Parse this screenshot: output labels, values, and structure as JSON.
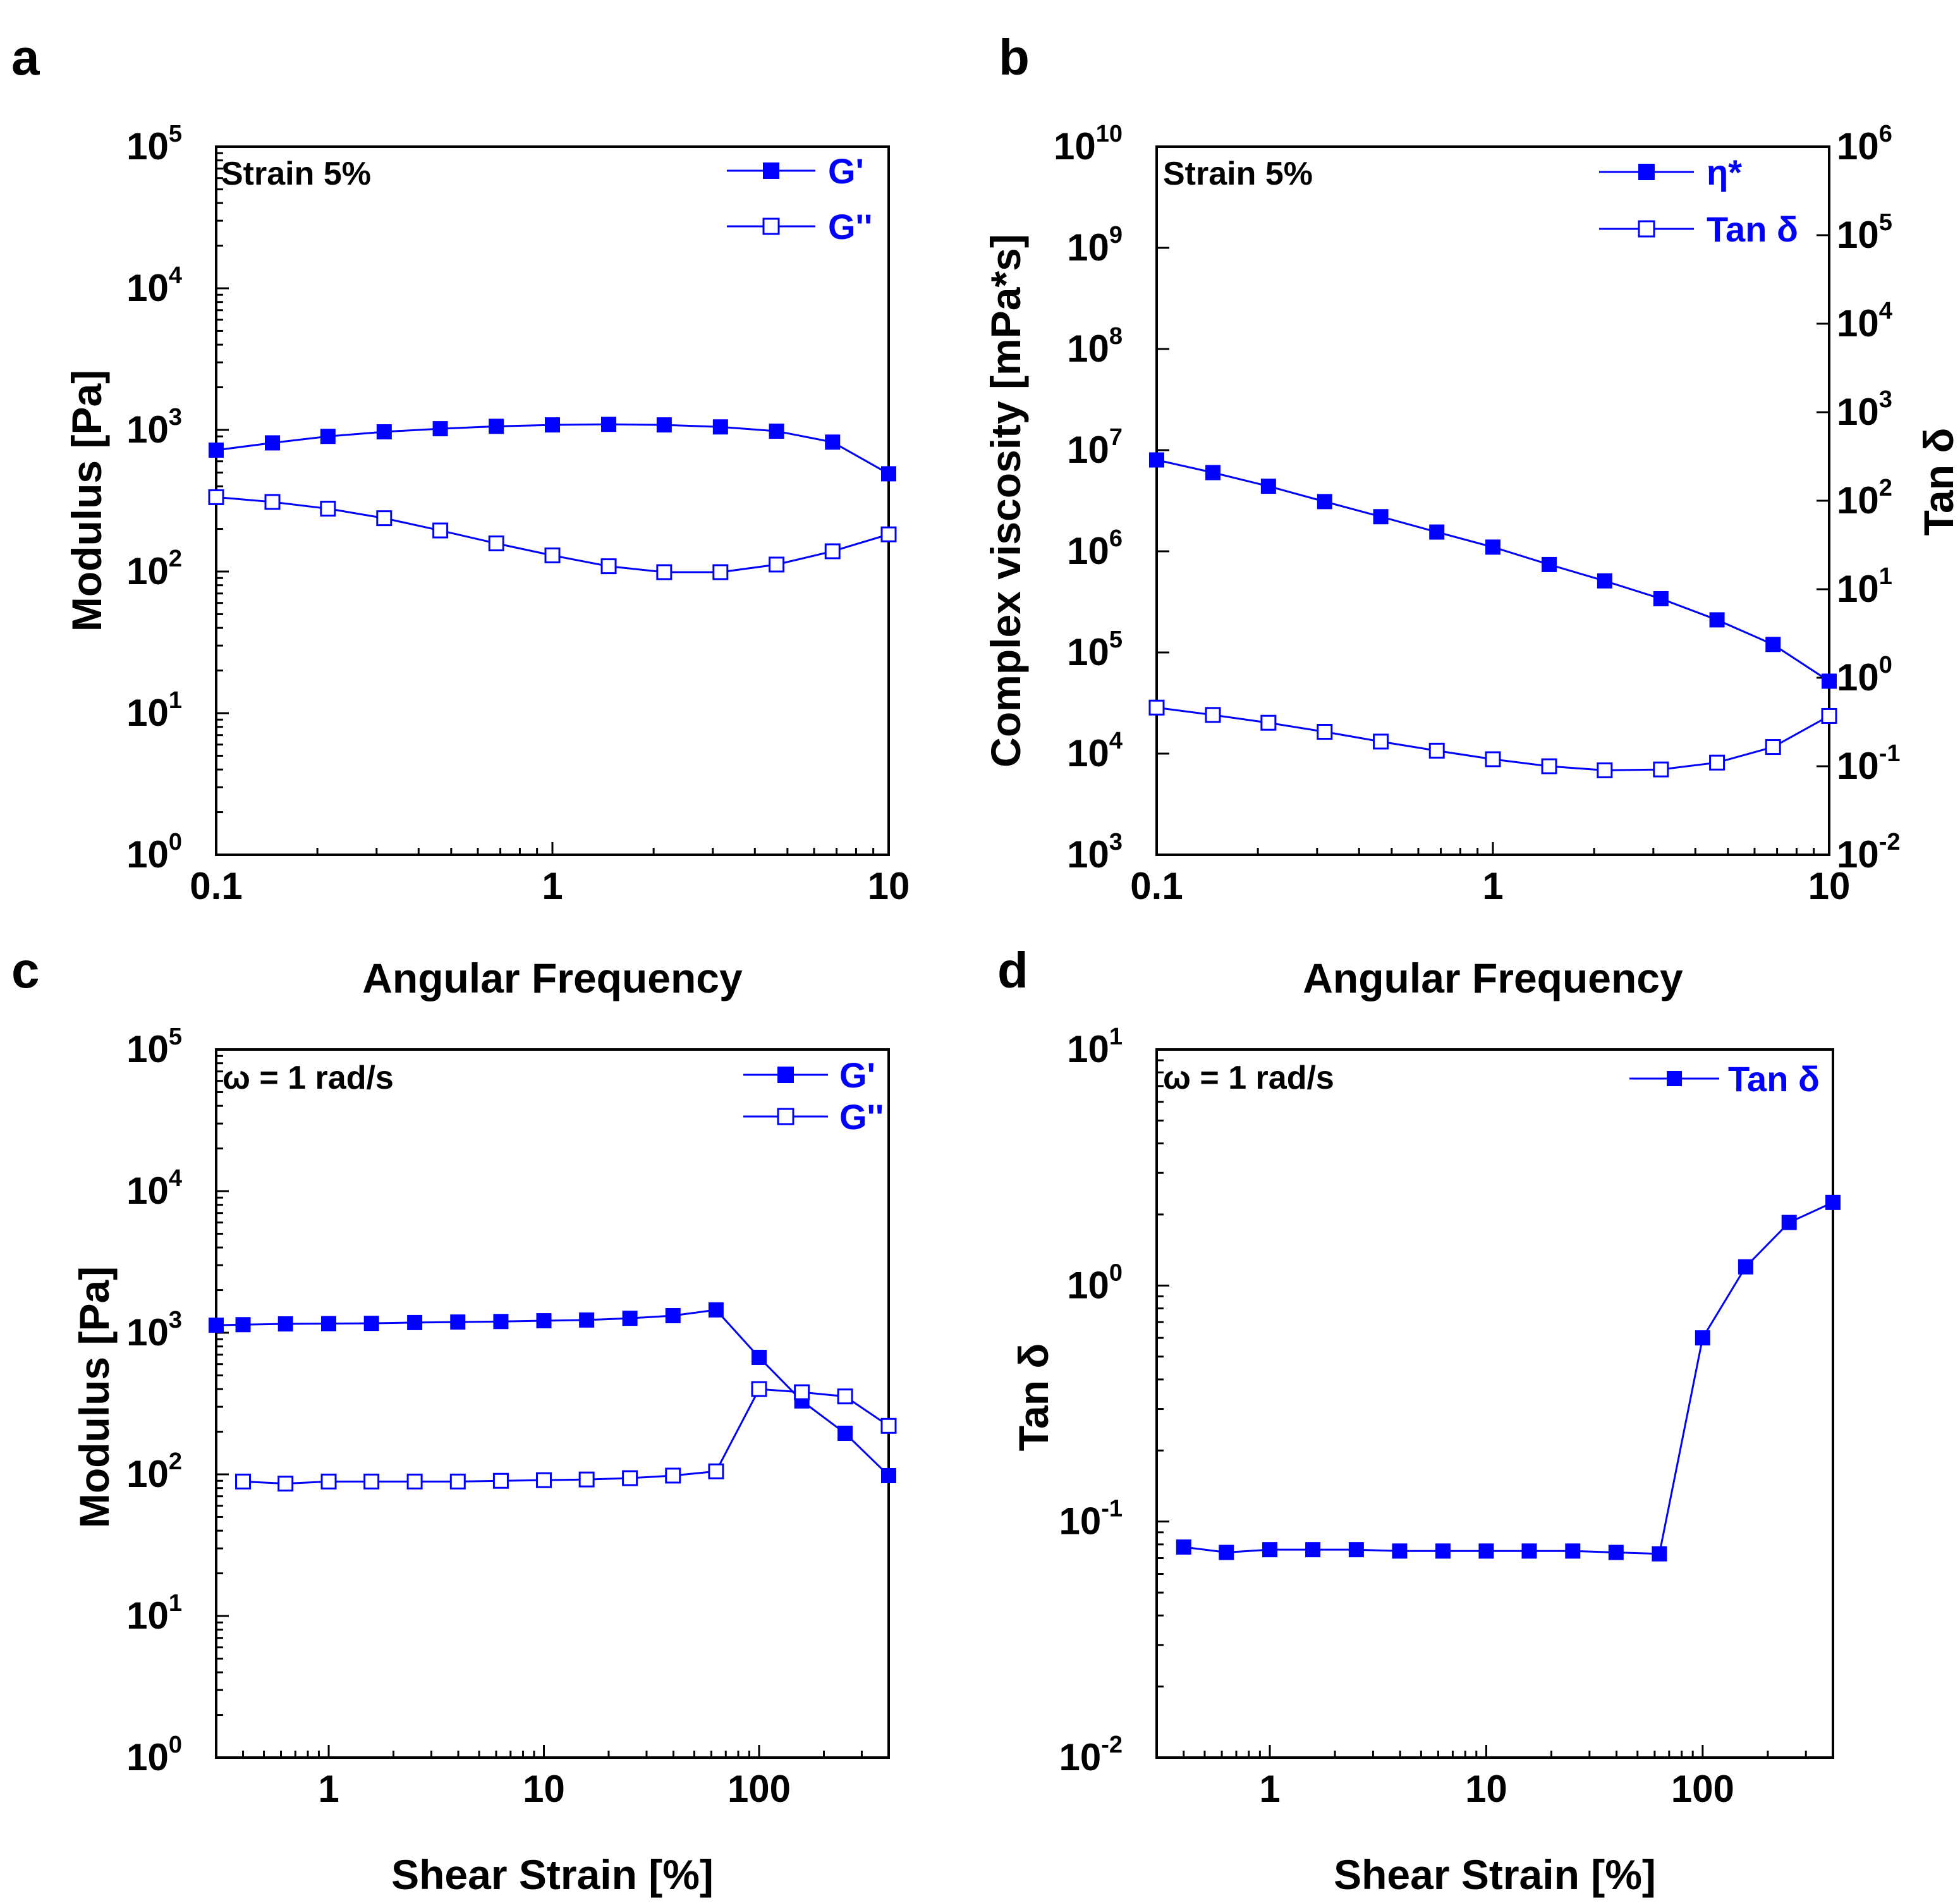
{
  "chart_data": [
    {
      "panel": "a",
      "type": "line",
      "x_scale": "log",
      "y_scale": "log",
      "xlabel": "Angular Frequency",
      "ylabel": "Modulus [Pa]",
      "xlim": [
        0.1,
        10
      ],
      "ylim": [
        1,
        100000
      ],
      "annotation": "Strain 5%",
      "legend": "top-right",
      "x_ticks": [
        {
          "label": "0.1",
          "v": 0.1
        },
        {
          "label": "1",
          "v": 1
        },
        {
          "label": "10",
          "v": 10
        }
      ],
      "y_ticks": [
        {
          "base": "10",
          "exp": "0",
          "v": 1
        },
        {
          "base": "10",
          "exp": "1",
          "v": 10
        },
        {
          "base": "10",
          "exp": "2",
          "v": 100
        },
        {
          "base": "10",
          "exp": "3",
          "v": 1000
        },
        {
          "base": "10",
          "exp": "4",
          "v": 10000
        },
        {
          "base": "10",
          "exp": "5",
          "v": 100000
        }
      ],
      "series": [
        {
          "name": "G'",
          "marker": "filled-square",
          "axis": "left",
          "x": [
            0.1,
            0.147,
            0.215,
            0.316,
            0.464,
            0.681,
            1,
            1.47,
            2.15,
            3.16,
            4.64,
            6.81,
            10
          ],
          "y": [
            720,
            810,
            900,
            970,
            1020,
            1060,
            1085,
            1095,
            1085,
            1050,
            980,
            820,
            490
          ]
        },
        {
          "name": "G''",
          "marker": "open-square",
          "axis": "left",
          "x": [
            0.1,
            0.147,
            0.215,
            0.316,
            0.464,
            0.681,
            1,
            1.47,
            2.15,
            3.16,
            4.64,
            6.81,
            10
          ],
          "y": [
            335,
            310,
            278,
            238,
            195,
            158,
            130,
            109,
            99,
            99,
            112,
            139,
            183
          ]
        }
      ]
    },
    {
      "panel": "b",
      "type": "line",
      "x_scale": "log",
      "y_scale": "log",
      "xlabel": "Angular Frequency",
      "ylabel": "Complex viscosity [mPa*s]",
      "y2label": "Tan δ",
      "xlim": [
        0.1,
        10
      ],
      "ylim": [
        1000,
        10000000000
      ],
      "y2lim": [
        0.01,
        1000000
      ],
      "annotation": "Strain 5%",
      "legend": "top-right",
      "x_ticks": [
        {
          "label": "0.1",
          "v": 0.1
        },
        {
          "label": "1",
          "v": 1
        },
        {
          "label": "10",
          "v": 10
        }
      ],
      "y_ticks": [
        {
          "base": "10",
          "exp": "3",
          "v": 1000
        },
        {
          "base": "10",
          "exp": "4",
          "v": 10000
        },
        {
          "base": "10",
          "exp": "5",
          "v": 100000
        },
        {
          "base": "10",
          "exp": "6",
          "v": 1000000
        },
        {
          "base": "10",
          "exp": "7",
          "v": 10000000
        },
        {
          "base": "10",
          "exp": "8",
          "v": 100000000
        },
        {
          "base": "10",
          "exp": "9",
          "v": 1000000000
        },
        {
          "base": "10",
          "exp": "10",
          "v": 10000000000
        }
      ],
      "y2_ticks": [
        {
          "base": "10",
          "exp": "-2",
          "v": 0.01
        },
        {
          "base": "10",
          "exp": "-1",
          "v": 0.1
        },
        {
          "base": "10",
          "exp": "0",
          "v": 1
        },
        {
          "base": "10",
          "exp": "1",
          "v": 10
        },
        {
          "base": "10",
          "exp": "2",
          "v": 100
        },
        {
          "base": "10",
          "exp": "3",
          "v": 1000
        },
        {
          "base": "10",
          "exp": "4",
          "v": 10000
        },
        {
          "base": "10",
          "exp": "5",
          "v": 100000
        },
        {
          "base": "10",
          "exp": "6",
          "v": 1000000
        }
      ],
      "series": [
        {
          "name": "η*",
          "marker": "filled-square",
          "axis": "left",
          "x": [
            0.1,
            0.147,
            0.215,
            0.316,
            0.464,
            0.681,
            1,
            1.47,
            2.15,
            3.16,
            4.64,
            6.81,
            10
          ],
          "y": [
            8000000,
            6000000,
            4400000,
            3100000,
            2200000,
            1550000,
            1100000,
            740000,
            510000,
            340000,
            210000,
            120000,
            52000
          ]
        },
        {
          "name": "Tan δ",
          "marker": "open-square",
          "axis": "right",
          "x": [
            0.1,
            0.147,
            0.215,
            0.316,
            0.464,
            0.681,
            1,
            1.47,
            2.15,
            3.16,
            4.64,
            6.81,
            10
          ],
          "y": [
            0.46,
            0.38,
            0.31,
            0.245,
            0.19,
            0.15,
            0.12,
            0.1,
            0.09,
            0.092,
            0.11,
            0.165,
            0.37
          ]
        }
      ]
    },
    {
      "panel": "c",
      "type": "line",
      "x_scale": "log",
      "y_scale": "log",
      "xlabel": "Shear Strain [%]",
      "ylabel": "Modulus [Pa]",
      "xlim": [
        0.3,
        400
      ],
      "ylim": [
        1,
        100000
      ],
      "annotation": "ω = 1 rad/s",
      "legend": "top-right",
      "x_ticks": [
        {
          "label": "1",
          "v": 1
        },
        {
          "label": "10",
          "v": 10
        },
        {
          "label": "100",
          "v": 100
        }
      ],
      "y_ticks": [
        {
          "base": "10",
          "exp": "0",
          "v": 1
        },
        {
          "base": "10",
          "exp": "1",
          "v": 10
        },
        {
          "base": "10",
          "exp": "2",
          "v": 100
        },
        {
          "base": "10",
          "exp": "3",
          "v": 1000
        },
        {
          "base": "10",
          "exp": "4",
          "v": 10000
        },
        {
          "base": "10",
          "exp": "5",
          "v": 100000
        }
      ],
      "series": [
        {
          "name": "G'",
          "marker": "filled-square",
          "axis": "left",
          "x": [
            0.3,
            0.4,
            0.63,
            1,
            1.58,
            2.51,
            3.98,
            6.31,
            10,
            15.8,
            25.1,
            39.8,
            63.1,
            100,
            158,
            251,
            400
          ],
          "y": [
            1130,
            1140,
            1155,
            1160,
            1165,
            1180,
            1190,
            1200,
            1215,
            1230,
            1265,
            1320,
            1450,
            670,
            330,
            195,
            98
          ]
        },
        {
          "name": "G''",
          "marker": "open-square",
          "axis": "left",
          "x": [
            0.4,
            0.63,
            1,
            1.58,
            2.51,
            3.98,
            6.31,
            10,
            15.8,
            25.1,
            39.8,
            63.1,
            100,
            158,
            251,
            400
          ],
          "y": [
            89,
            86,
            89,
            89,
            89,
            89,
            90,
            91,
            92,
            94,
            98,
            105,
            400,
            380,
            355,
            220
          ]
        }
      ]
    },
    {
      "panel": "d",
      "type": "line",
      "x_scale": "log",
      "y_scale": "log",
      "xlabel": "Shear Strain [%]",
      "ylabel": "Tan δ",
      "xlim": [
        0.3,
        400
      ],
      "ylim": [
        0.01,
        10
      ],
      "annotation": "ω = 1 rad/s",
      "legend": "top-right",
      "x_ticks": [
        {
          "label": "1",
          "v": 1
        },
        {
          "label": "10",
          "v": 10
        },
        {
          "label": "100",
          "v": 100
        }
      ],
      "y_ticks": [
        {
          "base": "10",
          "exp": "-2",
          "v": 0.01
        },
        {
          "base": "10",
          "exp": "-1",
          "v": 0.1
        },
        {
          "base": "10",
          "exp": "0",
          "v": 1
        },
        {
          "base": "10",
          "exp": "1",
          "v": 10
        }
      ],
      "series": [
        {
          "name": "Tan δ",
          "marker": "filled-square",
          "axis": "left",
          "x": [
            0.4,
            0.63,
            1,
            1.58,
            2.51,
            3.98,
            6.31,
            10,
            15.8,
            25.1,
            39.8,
            63.1,
            100,
            158,
            251,
            400
          ],
          "y": [
            0.078,
            0.074,
            0.076,
            0.076,
            0.076,
            0.075,
            0.075,
            0.075,
            0.075,
            0.075,
            0.074,
            0.073,
            0.6,
            1.2,
            1.85,
            2.25
          ]
        }
      ]
    }
  ],
  "colors": {
    "series": "#0000ff",
    "axis": "#000000",
    "background": "#ffffff"
  }
}
